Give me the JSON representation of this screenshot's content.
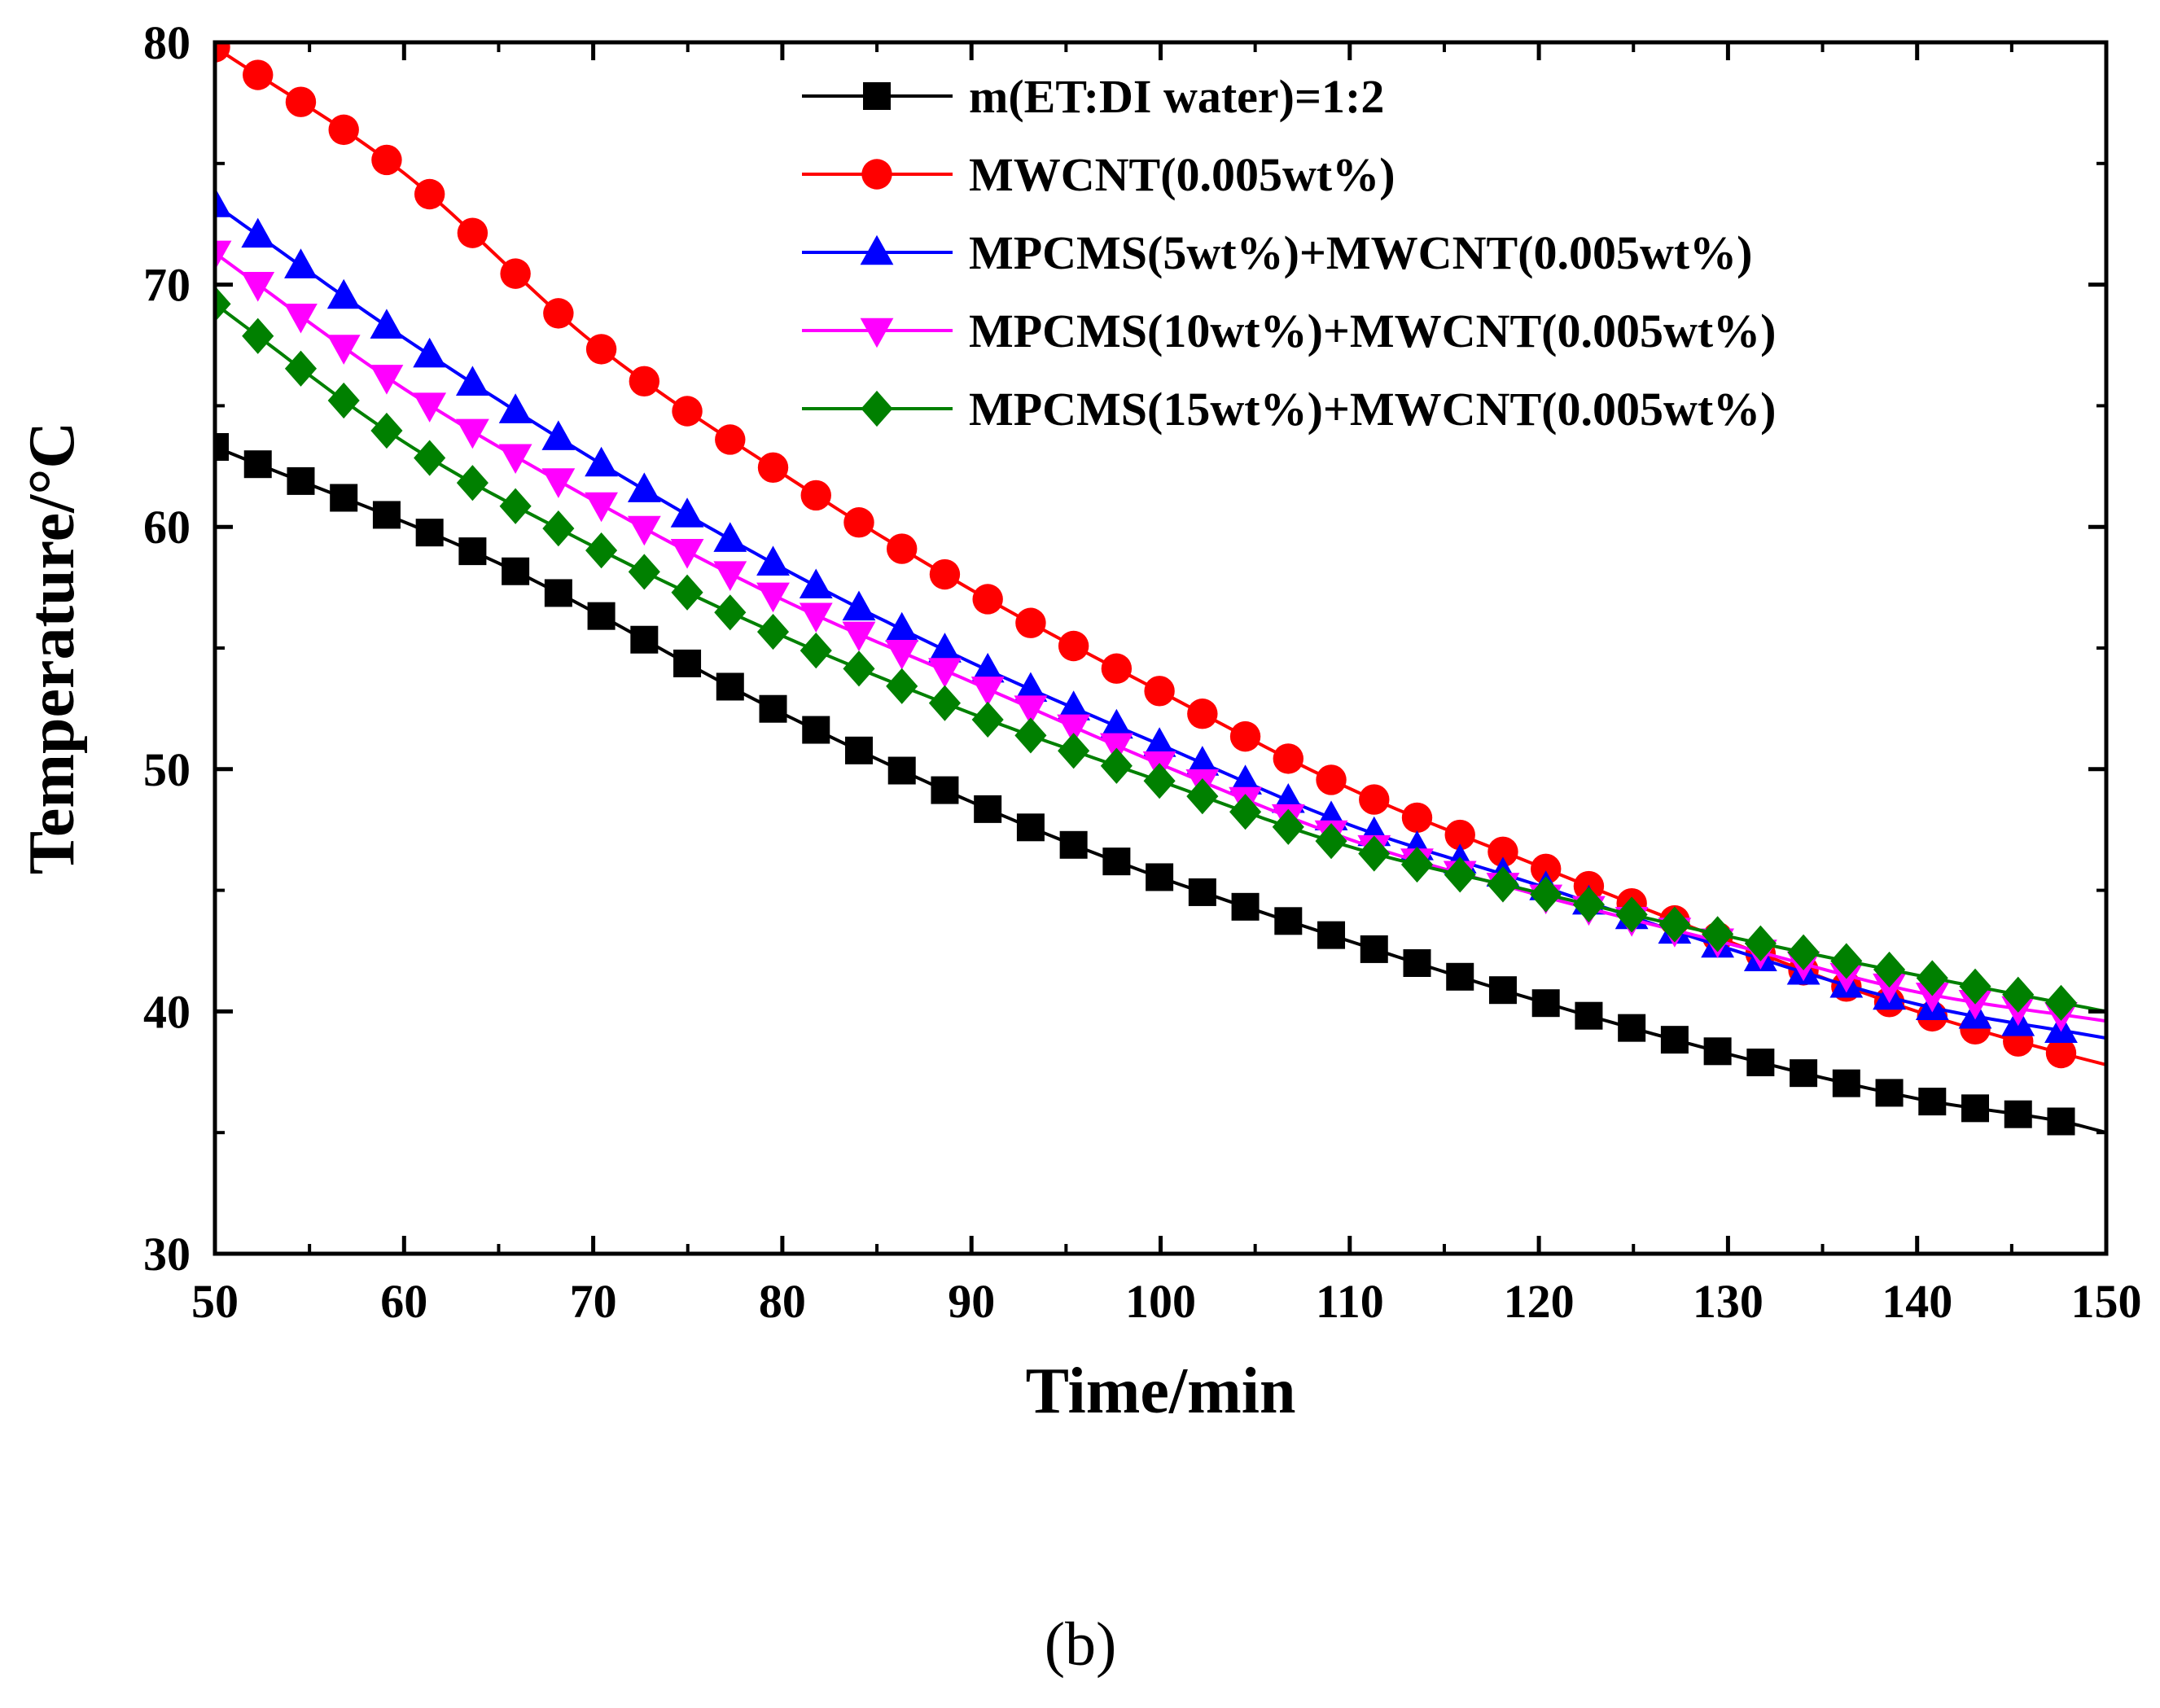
{
  "chart_data": {
    "type": "line",
    "title": "",
    "xlabel": "Time/min",
    "ylabel": "Temperature/°C",
    "xlim": [
      50,
      150
    ],
    "ylim": [
      30,
      80
    ],
    "xticks": [
      50,
      60,
      70,
      80,
      90,
      100,
      110,
      120,
      130,
      140,
      150
    ],
    "yticks": [
      30,
      40,
      50,
      60,
      70,
      80
    ],
    "grid": false,
    "legend_position": "top-right",
    "caption": "(b)",
    "marker_interval_min": 2.27,
    "series": [
      {
        "name": "m(ET:DI water)=1:2",
        "color": "#000000",
        "marker": "square",
        "x": [
          50,
          65,
          80,
          95,
          110,
          125,
          140,
          148,
          150
        ],
        "y": [
          63.3,
          58.5,
          52.3,
          47.0,
          42.9,
          39.3,
          36.4,
          35.4,
          35.0
        ]
      },
      {
        "name": "MWCNT(0.005wt%)",
        "color": "#ff0000",
        "marker": "circle",
        "x": [
          50,
          60,
          70,
          80,
          90,
          100,
          110,
          120,
          130,
          140,
          148,
          150
        ],
        "y": [
          79.8,
          74.6,
          67.6,
          62.2,
          57.4,
          53.2,
          49.2,
          46.0,
          42.9,
          40.0,
          38.2,
          37.8
        ]
      },
      {
        "name": "MPCMS(5wt%)+MWCNT(0.005wt%)",
        "color": "#0000ff",
        "marker": "triangle-up",
        "x": [
          50,
          60,
          70,
          80,
          90,
          100,
          110,
          120,
          130,
          140,
          150
        ],
        "y": [
          73.3,
          67.8,
          62.8,
          58.3,
          54.4,
          51.0,
          47.7,
          45.2,
          42.6,
          40.3,
          38.9
        ]
      },
      {
        "name": "MPCMS(10wt%)+MWCNT(0.005wt%)",
        "color": "#ff00ff",
        "marker": "triangle-down",
        "x": [
          50,
          60,
          70,
          80,
          90,
          100,
          110,
          120,
          130,
          140,
          150
        ],
        "y": [
          71.3,
          65.7,
          61.1,
          57.0,
          53.6,
          50.2,
          47.1,
          44.8,
          42.8,
          40.8,
          39.6
        ]
      },
      {
        "name": "MPCMS(15wt%)+MWCNT(0.005wt%)",
        "color": "#008000",
        "marker": "diamond",
        "x": [
          50,
          60,
          70,
          80,
          90,
          100,
          110,
          120,
          130,
          140,
          150
        ],
        "y": [
          69.2,
          63.5,
          59.2,
          55.5,
          52.3,
          49.5,
          46.8,
          44.9,
          43.1,
          41.5,
          40.0
        ]
      }
    ]
  }
}
